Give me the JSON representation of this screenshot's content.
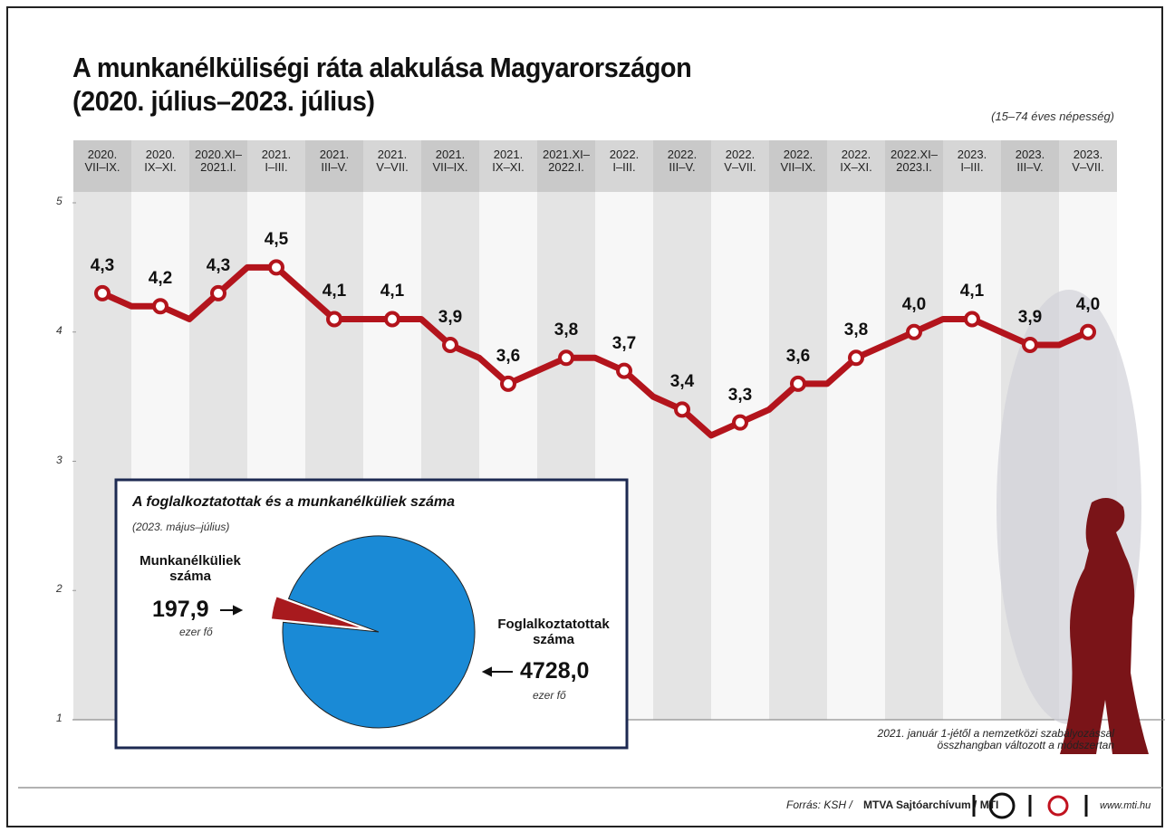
{
  "chart_data": [
    {
      "type": "line",
      "title": "A munkanélküliségi ráta alakulása Magyarországon\n(2020. július–2023. július)",
      "subtitle": "(15–74 éves népesség)",
      "categories": [
        "2020.\nVII–IX.",
        null,
        "2020.\nIX–XI.",
        null,
        "2020.XI–\n2021.I.",
        null,
        "2021.\nI–III.",
        null,
        "2021.\nIII–V.",
        null,
        "2021.\nV–VII.",
        null,
        "2021.\nVII–IX.",
        null,
        "2021.\nIX–XI.",
        null,
        "2021.XI–\n2022.I.",
        null,
        "2022.\nI–III.",
        null,
        "2022.\nIII–V.",
        null,
        "2022.\nV–VII.",
        null,
        "2022.\nVII–IX.",
        null,
        "2022.\nIX–XI.",
        null,
        "2022.XI–\n2023.I.",
        null,
        "2023.\nI–III.",
        null,
        "2023.\nIII–V.",
        null,
        "2023.\nV–VII."
      ],
      "series": [
        {
          "color": "#b3141c",
          "values": [
            4.3,
            4.2,
            4.2,
            4.1,
            4.3,
            4.5,
            4.5,
            4.3,
            4.1,
            4.1,
            4.1,
            4.1,
            3.9,
            3.8,
            3.6,
            3.7,
            3.8,
            3.8,
            3.7,
            3.5,
            3.4,
            3.2,
            3.3,
            3.4,
            3.6,
            3.6,
            3.8,
            3.9,
            4.0,
            4.1,
            4.1,
            4.0,
            3.9,
            3.9,
            4.0
          ],
          "value_labels": [
            "4,3",
            null,
            "4,2",
            null,
            "4,3",
            null,
            "4,5",
            null,
            "4,1",
            null,
            "4,1",
            null,
            "3,9",
            null,
            "3,6",
            null,
            "3,8",
            null,
            "3,7",
            null,
            "3,4",
            null,
            "3,3",
            null,
            "3,6",
            null,
            "3,8",
            null,
            "4,0",
            null,
            "4,1",
            null,
            "3,9",
            null,
            "4,0"
          ]
        }
      ],
      "ylim": [
        1,
        5
      ],
      "yticks": [
        1,
        2,
        3,
        4,
        5
      ],
      "note": "2021. január 1-jétől a nemzetközi szabályozással\nösszhangban változott a módszertan"
    },
    {
      "type": "pie",
      "title": "A foglalkoztatottak és a munkanélküliek száma",
      "subtitle": "(2023. május–július)",
      "categories": [
        "Munkanélküliek\nszáma",
        "Foglalkoztatottak\nszáma"
      ],
      "values": [
        197.9,
        4728.0
      ],
      "value_labels": [
        "197,9",
        "4728,0"
      ],
      "unit_labels": [
        "ezer fő",
        "ezer fő"
      ],
      "colors": [
        "#a81a1e",
        "#1a8ad6"
      ]
    }
  ],
  "source_label": "Forrás: KSH /",
  "source_org": "MTVA Sajtóarchívum / MTI",
  "website": "www.mti.hu"
}
